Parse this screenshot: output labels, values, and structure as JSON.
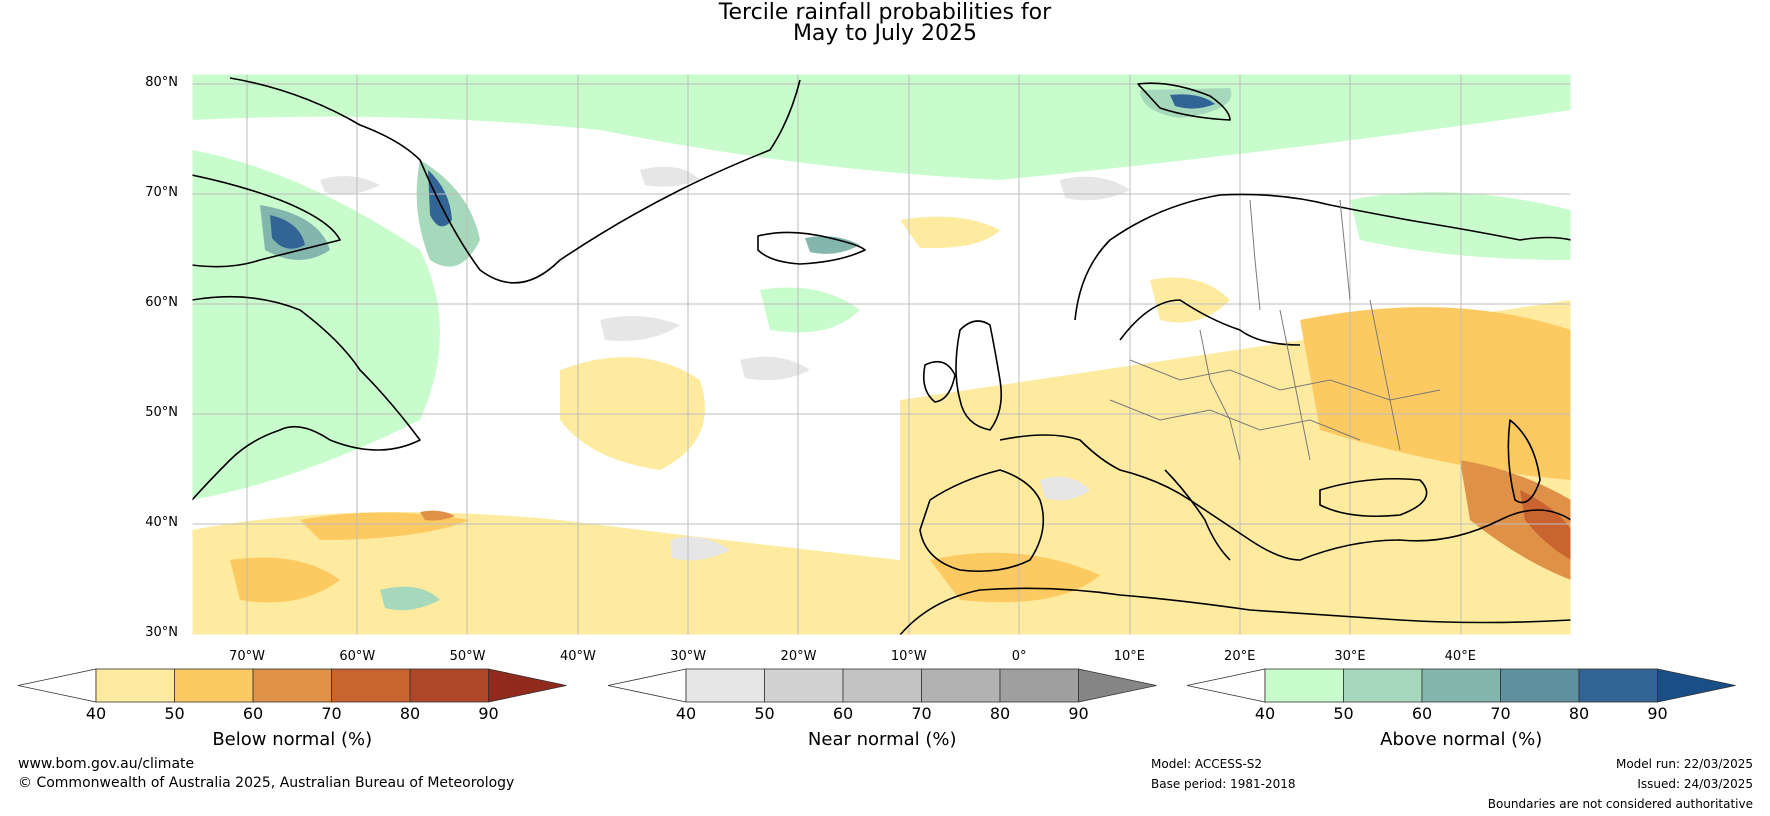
{
  "title_line1": "Tercile rainfall probabilities for",
  "title_line2": "May to July 2025",
  "map": {
    "lat_labels": [
      "80°N",
      "70°N",
      "60°N",
      "50°N",
      "40°N",
      "30°N"
    ],
    "lon_labels": [
      "70°W",
      "60°W",
      "50°W",
      "40°W",
      "30°W",
      "20°W",
      "10°W",
      "0°",
      "10°E",
      "20°E",
      "30°E",
      "40°E"
    ],
    "lat_range": [
      30,
      80
    ],
    "lon_range": [
      -75,
      50
    ]
  },
  "colorbars": [
    {
      "title": "Below normal (%)",
      "ticks": [
        "40",
        "50",
        "60",
        "70",
        "80",
        "90"
      ],
      "colors": [
        "#ffffff",
        "#feeba0",
        "#fdc961",
        "#df9148",
        "#c96431",
        "#ae4628",
        "#8f2a1c"
      ]
    },
    {
      "title": "Near normal (%)",
      "ticks": [
        "40",
        "50",
        "60",
        "70",
        "80",
        "90"
      ],
      "colors": [
        "#ffffff",
        "#e6e6e6",
        "#d2d2d2",
        "#c3c3c3",
        "#b2b2b2",
        "#9f9f9f",
        "#858585"
      ]
    },
    {
      "title": "Above normal (%)",
      "ticks": [
        "40",
        "50",
        "60",
        "70",
        "80",
        "90"
      ],
      "colors": [
        "#ffffff",
        "#c9fccc",
        "#a6d9bb",
        "#83b6ad",
        "#5e90a0",
        "#326595",
        "#194e86"
      ]
    }
  ],
  "footer": {
    "website": "www.bom.gov.au/climate",
    "copyright": "© Commonwealth of Australia 2025, Australian Bureau of Meteorology",
    "model": "Model: ACCESS-S2",
    "base_period": "Base period: 1981-2018",
    "model_run": "Model run: 22/03/2025",
    "issued": "Issued: 24/03/2025",
    "disclaimer": "Boundaries are not considered authoritative"
  }
}
